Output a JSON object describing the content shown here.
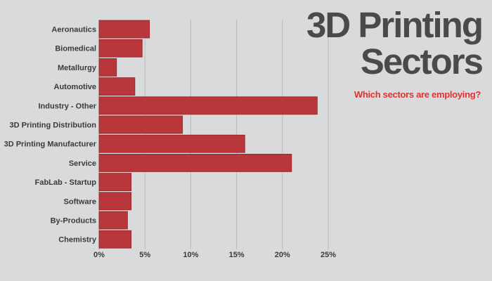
{
  "colors": {
    "bar": "#b9373a",
    "bar_edge": "#8f2426",
    "grid": "#b9bbbd",
    "axis": "#9a9a9a"
  },
  "chart_data": {
    "type": "bar",
    "orientation": "horizontal",
    "title_line1": "3D Printing",
    "title_line2": "Sectors",
    "subtitle": "Which sectors are employing?",
    "categories": [
      "Aeronautics",
      "Biomedical",
      "Metallurgy",
      "Automotive",
      "Industry - Other",
      "3D Printing Distribution",
      "3D Printing Manufacturer",
      "Service",
      "FabLab - Startup",
      "Software",
      "By-Products",
      "Chemistry"
    ],
    "values": [
      5.5,
      4.7,
      1.9,
      3.9,
      23.8,
      9.1,
      15.9,
      21.0,
      3.5,
      3.5,
      3.1,
      3.5
    ],
    "xlim": [
      0,
      25
    ],
    "xticks": [
      0,
      5,
      10,
      15,
      20,
      25
    ],
    "xtick_labels": [
      "0%",
      "5%",
      "10%",
      "15%",
      "20%",
      "25%"
    ],
    "grid": true
  }
}
